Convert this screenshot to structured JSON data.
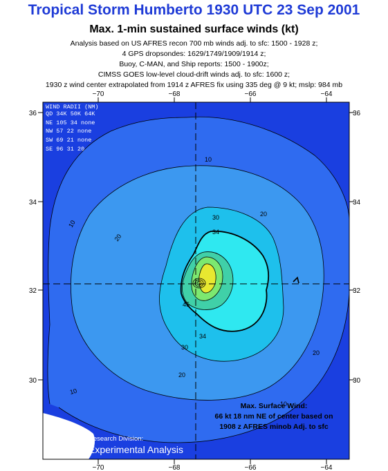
{
  "header": {
    "title": "Tropical Storm Humberto 1930 UTC 23 Sep 2001",
    "subtitle": "Max. 1-min sustained surface winds (kt)",
    "lines": [
      "Analysis based on US AFRES recon 700 mb winds adj. to sfc: 1500 - 1928 z;",
      "4 GPS dropsondes: 1629/1749/1909/1914 z;",
      "Buoy, C-MAN, and Ship reports: 1500 - 1900z;",
      "CIMSS GOES low-level cloud-drift winds adj. to sfc: 1600 z;",
      "1930 z wind center extrapolated from 1914 z AFRES fix using 335 deg @ 9 kt; mslp: 984 mb"
    ]
  },
  "map": {
    "lon_ticks": [
      "−70",
      "−68",
      "−66",
      "−64"
    ],
    "lat_ticks": [
      "36",
      "34",
      "32",
      "30"
    ],
    "colors": {
      "background": "#1a3fe0",
      "band_10": "#2f6bf0",
      "band_20": "#3c98f0",
      "band_30": "#1ec0ec",
      "band_34": "#2fe8f0",
      "band_40": "#40d0a8",
      "band_50": "#7ce870",
      "band_60": "#e8e830",
      "land": "#ffffff"
    },
    "contour_labels": [
      "10",
      "20",
      "30",
      "34",
      "10",
      "20",
      "30",
      "34",
      "45",
      "30",
      "20",
      "10",
      "10",
      "20"
    ]
  },
  "wind_radii": {
    "title": "WIND RADII (NM)",
    "header": "QD 34K 50K 64K",
    "rows": [
      "NE 105 34 none",
      "NW  57 22 none",
      "SW  69 21 none",
      "SE  96 31  20"
    ]
  },
  "max_wind": {
    "line1": "Max. Surface Wind:",
    "line2": "66 kt 18 nm NE of center based on",
    "line3": "1908 z AFRES minob Adj. to sfc"
  },
  "credits": {
    "division": "Research Division:",
    "analysis": "Experimental Analysis"
  }
}
